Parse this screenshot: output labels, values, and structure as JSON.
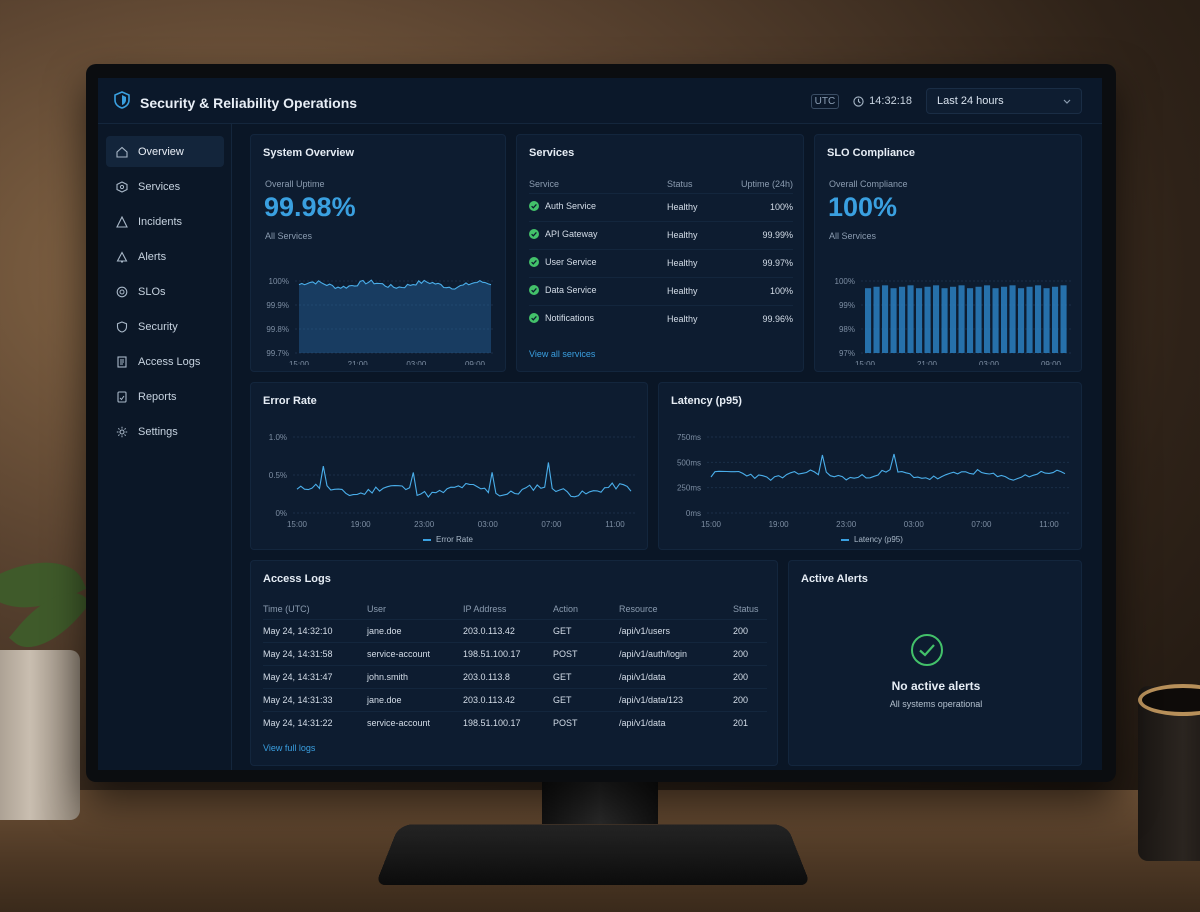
{
  "header": {
    "title": "Security & Reliability Operations",
    "utc_label": "UTC",
    "time": "14:32:18",
    "range": "Last 24 hours"
  },
  "sidebar": {
    "items": [
      {
        "label": "Overview",
        "icon": "home-icon",
        "active": true
      },
      {
        "label": "Services",
        "icon": "hexagon-icon"
      },
      {
        "label": "Incidents",
        "icon": "warning-icon"
      },
      {
        "label": "Alerts",
        "icon": "bell-icon"
      },
      {
        "label": "SLOs",
        "icon": "target-icon"
      },
      {
        "label": "Security",
        "icon": "shield-icon"
      },
      {
        "label": "Access Logs",
        "icon": "document-icon"
      },
      {
        "label": "Reports",
        "icon": "report-icon"
      },
      {
        "label": "Settings",
        "icon": "gear-icon"
      }
    ]
  },
  "system_overview": {
    "title": "System Overview",
    "label": "Overall Uptime",
    "value": "99.98%",
    "sub": "All Services",
    "y_ticks": [
      "100%",
      "99.9%",
      "99.8%",
      "99.7%"
    ],
    "x_ticks": [
      "15:00",
      "21:00",
      "03:00",
      "09:00"
    ]
  },
  "services": {
    "title": "Services",
    "columns": [
      "Service",
      "Status",
      "Uptime (24h)"
    ],
    "rows": [
      {
        "name": "Auth Service",
        "status": "Healthy",
        "uptime": "100%"
      },
      {
        "name": "API Gateway",
        "status": "Healthy",
        "uptime": "99.99%"
      },
      {
        "name": "User Service",
        "status": "Healthy",
        "uptime": "99.97%"
      },
      {
        "name": "Data Service",
        "status": "Healthy",
        "uptime": "100%"
      },
      {
        "name": "Notifications",
        "status": "Healthy",
        "uptime": "99.96%"
      }
    ],
    "link": "View all services"
  },
  "slo": {
    "title": "SLO Compliance",
    "label": "Overall Compliance",
    "value": "100%",
    "sub": "All Services",
    "y_ticks": [
      "100%",
      "99%",
      "98%",
      "97%"
    ],
    "x_ticks": [
      "15:00",
      "21:00",
      "03:00",
      "09:00"
    ]
  },
  "error_rate": {
    "title": "Error Rate",
    "y_ticks": [
      "1.0%",
      "0.5%",
      "0%"
    ],
    "x_ticks": [
      "15:00",
      "19:00",
      "23:00",
      "03:00",
      "07:00",
      "11:00"
    ],
    "legend": "Error Rate"
  },
  "latency": {
    "title": "Latency (p95)",
    "y_ticks": [
      "750ms",
      "500ms",
      "250ms",
      "0ms"
    ],
    "x_ticks": [
      "15:00",
      "19:00",
      "23:00",
      "03:00",
      "07:00",
      "11:00"
    ],
    "legend": "Latency (p95)"
  },
  "access_logs": {
    "title": "Access Logs",
    "columns": [
      "Time (UTC)",
      "User",
      "IP Address",
      "Action",
      "Resource",
      "Status"
    ],
    "rows": [
      {
        "time": "May 24, 14:32:10",
        "user": "jane.doe",
        "ip": "203.0.113.42",
        "action": "GET",
        "resource": "/api/v1/users",
        "status": "200"
      },
      {
        "time": "May 24, 14:31:58",
        "user": "service-account",
        "ip": "198.51.100.17",
        "action": "POST",
        "resource": "/api/v1/auth/login",
        "status": "200"
      },
      {
        "time": "May 24, 14:31:47",
        "user": "john.smith",
        "ip": "203.0.113.8",
        "action": "GET",
        "resource": "/api/v1/data",
        "status": "200"
      },
      {
        "time": "May 24, 14:31:33",
        "user": "jane.doe",
        "ip": "203.0.113.42",
        "action": "GET",
        "resource": "/api/v1/data/123",
        "status": "200"
      },
      {
        "time": "May 24, 14:31:22",
        "user": "service-account",
        "ip": "198.51.100.17",
        "action": "POST",
        "resource": "/api/v1/data",
        "status": "201"
      }
    ],
    "link": "View full logs"
  },
  "active_alerts": {
    "title": "Active Alerts",
    "headline": "No active alerts",
    "sub": "All systems operational"
  },
  "colors": {
    "accent": "#3aa0e0",
    "healthy": "#43c16a",
    "background": "#0a1626"
  }
}
